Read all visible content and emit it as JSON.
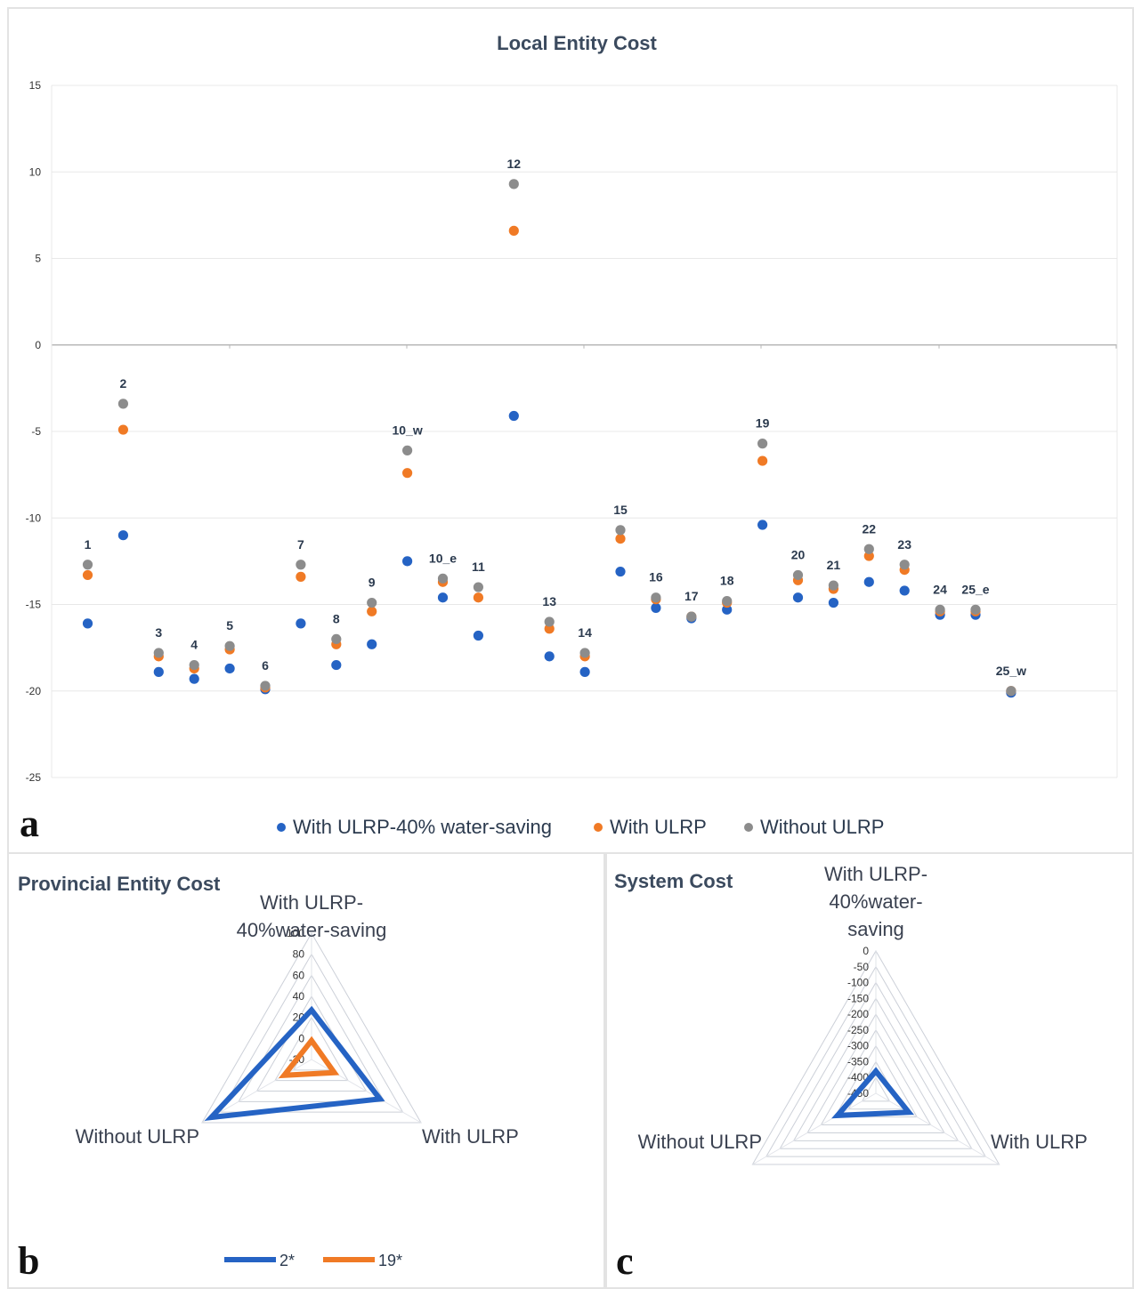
{
  "colors": {
    "series1": "#2563c4",
    "series2": "#f07a25",
    "series3": "#8c8c8c",
    "grid": "#e8e8e8",
    "axis": "#b8b8b8",
    "title": "#3b4a5e",
    "radar_grid": "#ccd0d8"
  },
  "panel_a": {
    "letter": "a",
    "legend": [
      {
        "label": "With ULRP-40% water-saving",
        "color": "#2563c4"
      },
      {
        "label": "With ULRP",
        "color": "#f07a25"
      },
      {
        "label": "Without ULRP",
        "color": "#8c8c8c"
      }
    ]
  },
  "panel_b": {
    "letter": "b"
  },
  "panel_c": {
    "letter": "c"
  },
  "chart_data": [
    {
      "type": "scatter",
      "title": "Local Entity Cost",
      "ylim": [
        -25,
        15
      ],
      "yticks": [
        15,
        10,
        5,
        0,
        -5,
        -10,
        -15,
        -20,
        -25
      ],
      "grid": true,
      "legend_position": "bottom",
      "categories": [
        "1",
        "2",
        "3",
        "4",
        "5",
        "6",
        "7",
        "8",
        "9",
        "10_w",
        "10_e",
        "11",
        "12",
        "13",
        "14",
        "15",
        "16",
        "17",
        "18",
        "19",
        "20",
        "21",
        "22",
        "23",
        "24",
        "25_e",
        "25_w"
      ],
      "series": [
        {
          "name": "With ULRP-40% water-saving",
          "values": [
            -16.1,
            -11.0,
            -18.9,
            -19.3,
            -18.7,
            -19.9,
            -16.1,
            -18.5,
            -17.3,
            -12.5,
            -14.6,
            -16.8,
            -4.1,
            -18.0,
            -18.9,
            -13.1,
            -15.2,
            -15.8,
            -15.3,
            -10.4,
            -14.6,
            -14.9,
            -13.7,
            -14.2,
            -15.6,
            -15.6,
            -20.1
          ]
        },
        {
          "name": "With ULRP",
          "values": [
            -13.3,
            -4.9,
            -18.0,
            -18.7,
            -17.6,
            -19.8,
            -13.4,
            -17.3,
            -15.4,
            -7.4,
            -13.7,
            -14.6,
            6.6,
            -16.4,
            -18.0,
            -11.2,
            -14.7,
            -15.7,
            -14.9,
            -6.7,
            -13.6,
            -14.1,
            -12.2,
            -13.0,
            -15.4,
            -15.4,
            -20.0
          ]
        },
        {
          "name": "Without ULRP",
          "values": [
            -12.7,
            -3.4,
            -17.8,
            -18.5,
            -17.4,
            -19.7,
            -12.7,
            -17.0,
            -14.9,
            -6.1,
            -13.5,
            -14.0,
            9.3,
            -16.0,
            -17.8,
            -10.7,
            -14.6,
            -15.7,
            -14.8,
            -5.7,
            -13.3,
            -13.9,
            -11.8,
            -12.7,
            -15.3,
            -15.3,
            -20.0
          ]
        }
      ]
    },
    {
      "type": "radar",
      "title": "Provincial Entity Cost",
      "axes": [
        "With ULRP-\n40%water-saving",
        "With ULRP",
        "Without ULRP"
      ],
      "range": [
        -20,
        100
      ],
      "ticks": [
        100,
        80,
        60,
        40,
        20,
        0,
        -20
      ],
      "legend_position": "bottom",
      "series": [
        {
          "name": "2*",
          "values": [
            27,
            55,
            90
          ]
        },
        {
          "name": "19*",
          "values": [
            -2,
            5,
            10
          ]
        }
      ]
    },
    {
      "type": "radar",
      "title": "System Cost",
      "axes": [
        "With ULRP-\n40%water-\nsaving",
        "With ULRP",
        "Without ULRP"
      ],
      "range": [
        -450,
        0
      ],
      "ticks": [
        0,
        -50,
        -100,
        -150,
        -200,
        -250,
        -300,
        -350,
        -400,
        -450
      ],
      "series": [
        {
          "name": "",
          "values": [
            -380,
            -330,
            -310
          ]
        }
      ]
    }
  ]
}
